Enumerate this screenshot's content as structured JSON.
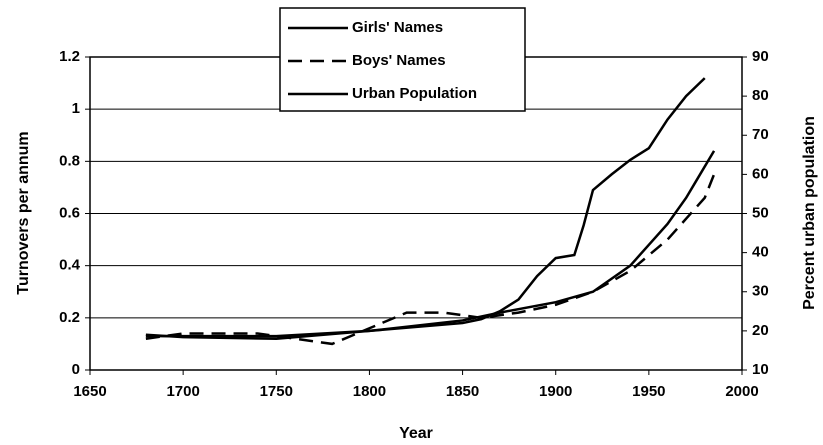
{
  "chart_data": {
    "type": "line",
    "x_label": "Year",
    "y_label": "Turnovers per annum",
    "y2_label": "Percent urban population",
    "xlim": [
      1650,
      2000
    ],
    "xticks": [
      1650,
      1700,
      1750,
      1800,
      1850,
      1900,
      1950,
      2000
    ],
    "ylim": [
      0,
      1.2
    ],
    "yticks": [
      0,
      0.2,
      0.4,
      0.6,
      0.8,
      1,
      1.2
    ],
    "y2lim": [
      10,
      90
    ],
    "y2ticks": [
      10,
      20,
      30,
      40,
      50,
      60,
      70,
      80,
      90
    ],
    "grid": true,
    "legend": "top",
    "series": [
      {
        "name": "Girls' Names",
        "color": "#000000",
        "style": "solid",
        "x": [
          1680,
          1700,
          1750,
          1800,
          1850,
          1870,
          1900,
          1920,
          1940,
          1950,
          1960,
          1970,
          1975,
          1985
        ],
        "values": [
          0.13,
          0.13,
          0.13,
          0.15,
          0.19,
          0.22,
          0.26,
          0.3,
          0.4,
          0.48,
          0.56,
          0.66,
          0.72,
          0.84
        ]
      },
      {
        "name": "Boys' Names",
        "color": "#000000",
        "style": "dashed",
        "x": [
          1680,
          1700,
          1740,
          1760,
          1780,
          1800,
          1820,
          1840,
          1860,
          1880,
          1900,
          1920,
          1940,
          1950,
          1960,
          1970,
          1980,
          1985
        ],
        "values": [
          0.12,
          0.14,
          0.14,
          0.12,
          0.1,
          0.16,
          0.22,
          0.22,
          0.2,
          0.22,
          0.25,
          0.3,
          0.38,
          0.44,
          0.5,
          0.58,
          0.66,
          0.75
        ]
      },
      {
        "name": "Urban Population",
        "color": "#000000",
        "style": "solid",
        "axis": "y2",
        "x": [
          1680,
          1700,
          1750,
          1800,
          1850,
          1860,
          1870,
          1880,
          1890,
          1900,
          1910,
          1915,
          1920,
          1930,
          1940,
          1950,
          1960,
          1970,
          1980
        ],
        "values": [
          19,
          18.4,
          18,
          20,
          22,
          23,
          25,
          28,
          34,
          38.6,
          39.4,
          47,
          56,
          60,
          63.7,
          66.7,
          74,
          80,
          84.6
        ]
      }
    ]
  }
}
